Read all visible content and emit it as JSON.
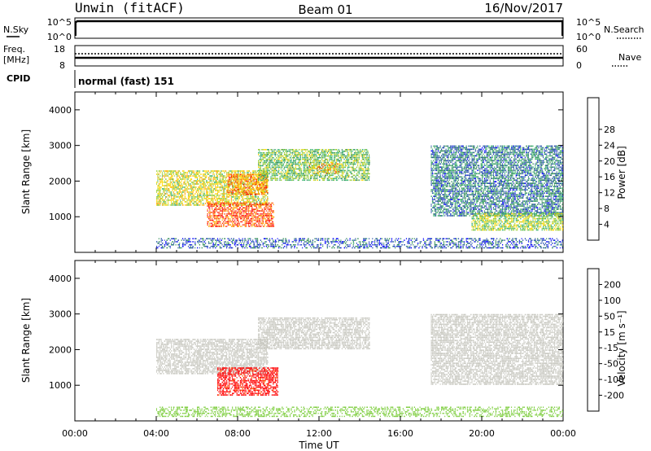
{
  "header": {
    "station": "Unwin (fitACF)",
    "beam": "Beam 01",
    "date": "16/Nov/2017"
  },
  "top_panels": {
    "nsky_label": "N.Sky",
    "nsky_ticks": [
      "10^5",
      "10^0"
    ],
    "nsearch_label": "N.Search",
    "nsearch_ticks": [
      "10^5",
      "10^0"
    ],
    "freq_label_1": "Freq.",
    "freq_label_2": "[MHz]",
    "freq_ticks": [
      "18",
      "8"
    ],
    "nave_label": "Nave",
    "nave_ticks": [
      "60",
      "0"
    ],
    "cpid_label": "CPID",
    "cpid_text": "normal (fast) 151"
  },
  "colors": {
    "power": [
      "#0000ff",
      "#1f4aa8",
      "#2e8b57",
      "#3cb371",
      "#9acd32",
      "#ffd700",
      "#ffa500",
      "#ff4500",
      "#ff0000"
    ],
    "velocity": [
      "#ff0000",
      "#ff6600",
      "#ffaa00",
      "#ffd800",
      "#c8c8c0",
      "#7ccd3c",
      "#2e8b3a",
      "#2e6b8a",
      "#1c3aa8"
    ]
  },
  "chart_data": [
    {
      "type": "heatmap",
      "name": "power-panel",
      "ylabel": "Slant Range [km]",
      "xlabel": "",
      "xlim": [
        "00:00",
        "24:00"
      ],
      "ylim": [
        0,
        4500
      ],
      "yticks": [
        "1000",
        "2000",
        "3000",
        "4000"
      ],
      "colorbar": {
        "label": "Power [dB]",
        "ticks": [
          "4",
          "8",
          "12",
          "16",
          "20",
          "24",
          "28"
        ]
      },
      "echo_bands": [
        {
          "t_start": 4.0,
          "t_end": 9.5,
          "r_low": 1300,
          "r_high": 2300,
          "power": 18
        },
        {
          "t_start": 6.5,
          "t_end": 9.8,
          "r_low": 700,
          "r_high": 1400,
          "power": 27
        },
        {
          "t_start": 7.5,
          "t_end": 9.5,
          "r_low": 1600,
          "r_high": 2200,
          "power": 24
        },
        {
          "t_start": 9.0,
          "t_end": 14.5,
          "r_low": 2000,
          "r_high": 2900,
          "power": 14
        },
        {
          "t_start": 11.5,
          "t_end": 13.0,
          "r_low": 2200,
          "r_high": 2500,
          "power": 22
        },
        {
          "t_start": 17.5,
          "t_end": 24.0,
          "r_low": 1000,
          "r_high": 3000,
          "power": 8
        },
        {
          "t_start": 19.5,
          "t_end": 24.0,
          "r_low": 600,
          "r_high": 1100,
          "power": 16
        },
        {
          "t_start": 4.0,
          "t_end": 24.0,
          "r_low": 100,
          "r_high": 400,
          "power": 6
        }
      ]
    },
    {
      "type": "heatmap",
      "name": "velocity-panel",
      "ylabel": "Slant Range [km]",
      "xlabel": "Time UT",
      "xlim": [
        "00:00",
        "24:00"
      ],
      "ylim": [
        0,
        4500
      ],
      "xticks": [
        "00:00",
        "04:00",
        "08:00",
        "12:00",
        "16:00",
        "20:00",
        "00:00"
      ],
      "yticks": [
        "1000",
        "2000",
        "3000",
        "4000"
      ],
      "colorbar": {
        "label": "Velocity [m s⁻¹]",
        "ticks": [
          "-200",
          "-100",
          "-50",
          "-15",
          "15",
          "50",
          "100",
          "200"
        ]
      },
      "echo_bands": [
        {
          "t_start": 4.0,
          "t_end": 9.5,
          "r_low": 1300,
          "r_high": 2300,
          "velocity": 0
        },
        {
          "t_start": 7.0,
          "t_end": 10.0,
          "r_low": 700,
          "r_high": 1500,
          "velocity": -250
        },
        {
          "t_start": 9.0,
          "t_end": 14.5,
          "r_low": 2000,
          "r_high": 2900,
          "velocity": 0
        },
        {
          "t_start": 17.5,
          "t_end": 24.0,
          "r_low": 1000,
          "r_high": 3000,
          "velocity": 0
        },
        {
          "t_start": 4.0,
          "t_end": 24.0,
          "r_low": 100,
          "r_high": 400,
          "velocity": 30
        }
      ]
    }
  ]
}
